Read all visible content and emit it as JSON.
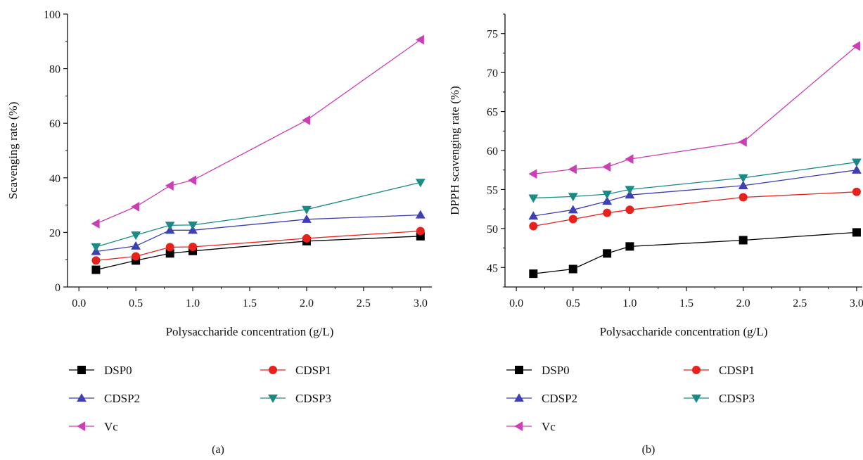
{
  "chart_data": [
    {
      "type": "line",
      "panel_label": "(a)",
      "xlabel": "Polysaccharide concentration (g/L)",
      "ylabel": "Scavenging rate (%)",
      "xlim": [
        -0.1,
        3.1
      ],
      "ylim": [
        0,
        100
      ],
      "xticks": [
        "0.0",
        "0.5",
        "1.0",
        "1.5",
        "2.0",
        "2.5",
        "3.0"
      ],
      "yticks": [
        "0",
        "20",
        "40",
        "60",
        "80",
        "100"
      ],
      "grid": false,
      "legend_position": "below",
      "x": [
        0.15,
        0.5,
        0.8,
        1.0,
        2.0,
        3.0
      ],
      "series": [
        {
          "name": "DSP0",
          "color": "#000000",
          "marker": "square",
          "values": [
            6.3,
            9.7,
            12.3,
            13.2,
            16.8,
            18.6
          ]
        },
        {
          "name": "CDSP1",
          "color": "#e8221b",
          "marker": "circle",
          "values": [
            9.7,
            11.2,
            14.6,
            14.7,
            17.8,
            20.5
          ]
        },
        {
          "name": "CDSP2",
          "color": "#3f3fb4",
          "marker": "triangle-up",
          "values": [
            13.0,
            15.0,
            20.8,
            20.8,
            24.8,
            26.4
          ]
        },
        {
          "name": "CDSP3",
          "color": "#1a8a85",
          "marker": "triangle-down",
          "values": [
            14.7,
            19.0,
            22.6,
            22.7,
            28.4,
            38.3
          ]
        },
        {
          "name": "Vc",
          "color": "#cc3fb4",
          "marker": "triangle-left",
          "values": [
            23.2,
            29.4,
            37.1,
            39.1,
            61.1,
            90.6
          ]
        }
      ]
    },
    {
      "type": "line",
      "panel_label": "(b)",
      "xlabel": "Polysaccharide concentration (g/L)",
      "ylabel": "DPPH scavenging rate (%)",
      "xlim": [
        -0.1,
        3.05
      ],
      "ylim": [
        42.5,
        77.5
      ],
      "xticks": [
        "0.0",
        "0.5",
        "1.0",
        "1.5",
        "2.0",
        "2.5",
        "3.0"
      ],
      "yticks": [
        "45",
        "50",
        "55",
        "60",
        "65",
        "70",
        "75"
      ],
      "grid": false,
      "legend_position": "below",
      "x": [
        0.15,
        0.5,
        0.8,
        1.0,
        2.0,
        3.0
      ],
      "series": [
        {
          "name": "DSP0",
          "color": "#000000",
          "marker": "square",
          "values": [
            44.2,
            44.8,
            46.8,
            47.7,
            48.5,
            49.5
          ]
        },
        {
          "name": "CDSP1",
          "color": "#e8221b",
          "marker": "circle",
          "values": [
            50.3,
            51.2,
            52.0,
            52.4,
            54.0,
            54.7
          ]
        },
        {
          "name": "CDSP2",
          "color": "#3f3fb4",
          "marker": "triangle-up",
          "values": [
            51.6,
            52.4,
            53.5,
            54.3,
            55.5,
            57.5
          ]
        },
        {
          "name": "CDSP3",
          "color": "#1a8a85",
          "marker": "triangle-down",
          "values": [
            53.9,
            54.1,
            54.4,
            55.0,
            56.5,
            58.5
          ]
        },
        {
          "name": "Vc",
          "color": "#cc3fb4",
          "marker": "triangle-left",
          "values": [
            57.0,
            57.6,
            57.9,
            58.9,
            61.1,
            73.4
          ]
        }
      ]
    }
  ]
}
